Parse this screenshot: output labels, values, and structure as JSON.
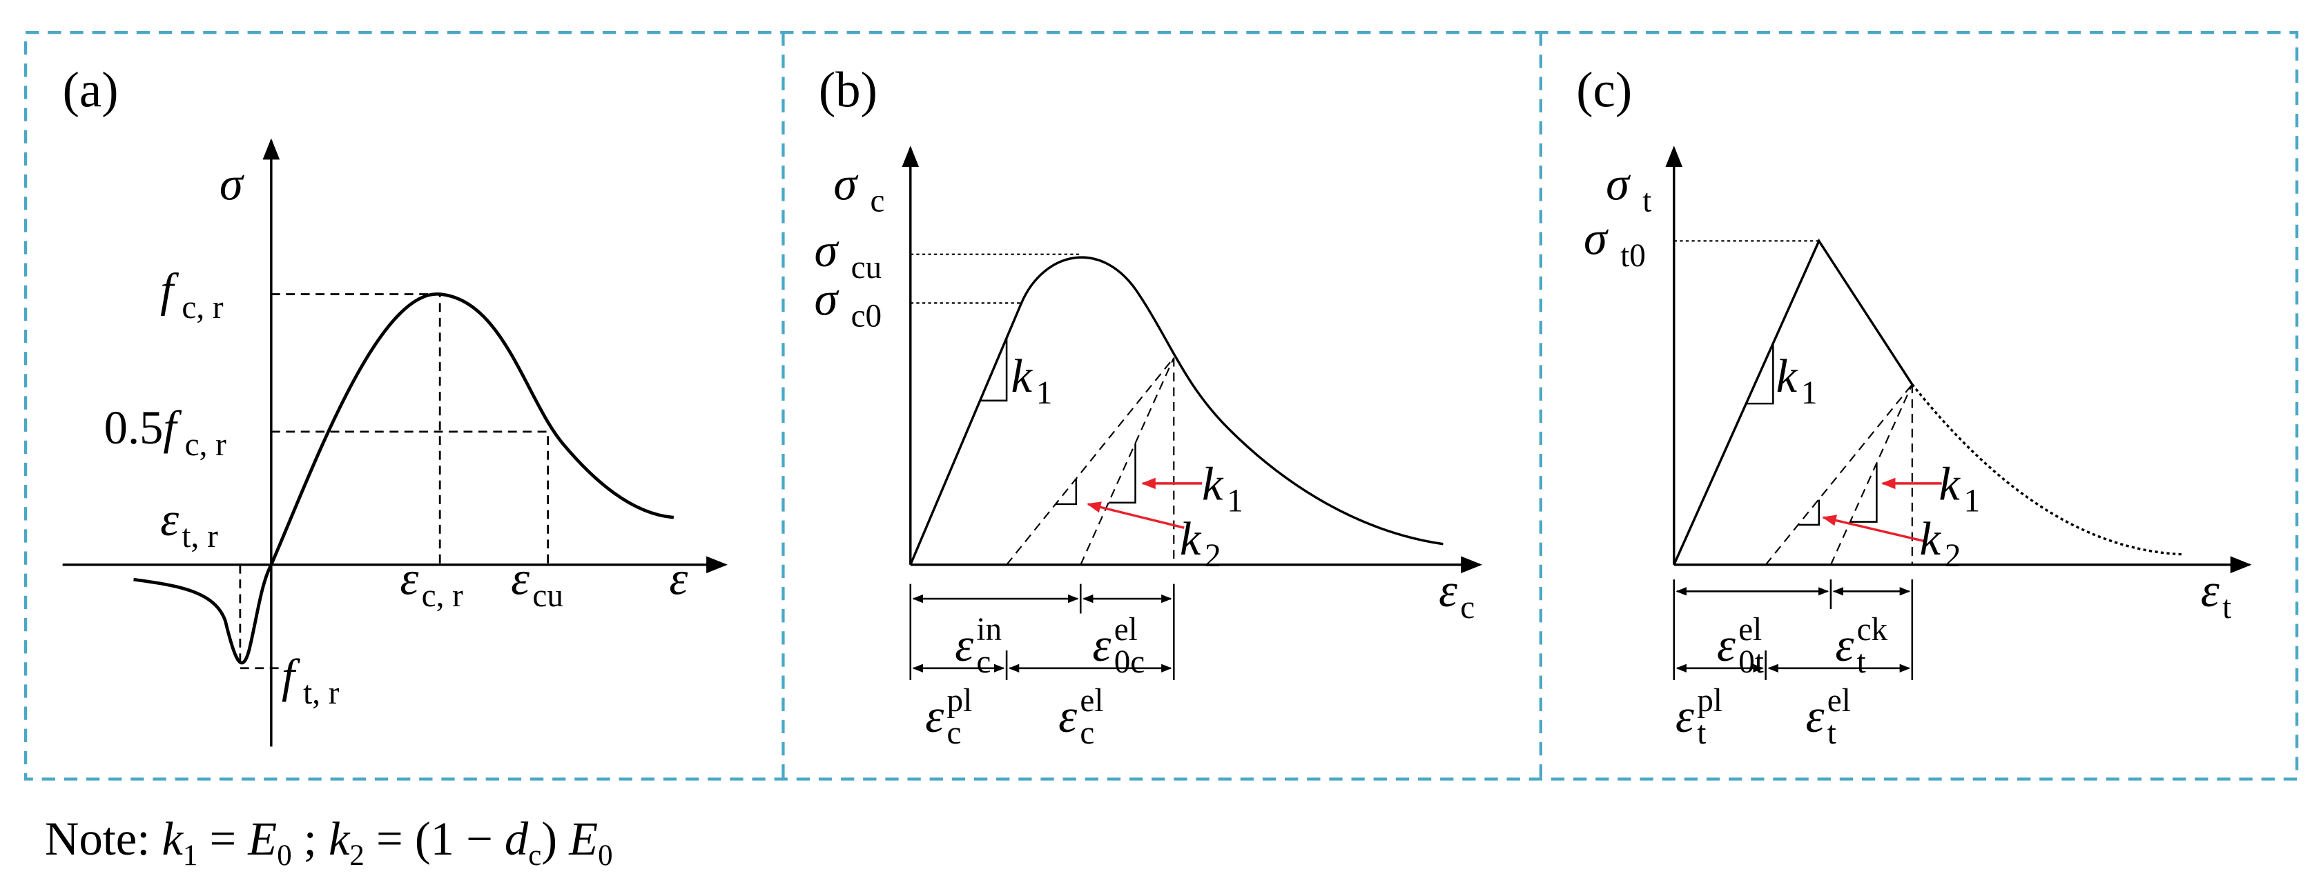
{
  "panels": [
    {
      "tag": "(a)",
      "labels": [
        {
          "symbol": "σ"
        },
        {
          "symbol": "f",
          "sub": "c, r"
        },
        {
          "prefix": "0.5",
          "symbol": "f",
          "sub": "c, r"
        },
        {
          "symbol": "ε",
          "sub": "t, r"
        },
        {
          "symbol": "ε",
          "sub": "c, r"
        },
        {
          "symbol": "ε",
          "sub": "cu"
        },
        {
          "symbol": "ε"
        },
        {
          "symbol": "f",
          "sub": "t, r"
        }
      ]
    },
    {
      "tag": "(b)",
      "labels": [
        {
          "symbol": "σ",
          "sub": "c"
        },
        {
          "symbol": "σ",
          "sub": "cu"
        },
        {
          "symbol": "σ",
          "sub": "c0"
        },
        {
          "symbol": "k",
          "sub": "1"
        },
        {
          "symbol": "k",
          "sub": "1"
        },
        {
          "symbol": "k",
          "sub": "2"
        },
        {
          "symbol": "ε",
          "sub": "c"
        },
        {
          "symbol": "ε",
          "sub": "c",
          "sup": "in"
        },
        {
          "symbol": "ε",
          "sub": "0c",
          "sup": "el"
        },
        {
          "symbol": "ε",
          "sub": "c",
          "sup": "pl"
        },
        {
          "symbol": "ε",
          "sub": "c",
          "sup": "el"
        }
      ]
    },
    {
      "tag": "(c)",
      "labels": [
        {
          "symbol": "σ",
          "sub": "t"
        },
        {
          "symbol": "σ",
          "sub": "t0"
        },
        {
          "symbol": "k",
          "sub": "1"
        },
        {
          "symbol": "k",
          "sub": "1"
        },
        {
          "symbol": "k",
          "sub": "2"
        },
        {
          "symbol": "ε",
          "sub": "t"
        },
        {
          "symbol": "ε",
          "sub": "0t",
          "sup": "el"
        },
        {
          "symbol": "ε",
          "sub": "t",
          "sup": "ck"
        },
        {
          "symbol": "ε",
          "sub": "t",
          "sup": "pl"
        },
        {
          "symbol": "ε",
          "sub": "t",
          "sup": "el"
        }
      ]
    }
  ],
  "note": [
    "Note: ",
    "k",
    "1",
    " = ",
    "E",
    "0",
    " ; ",
    "k",
    "2",
    " = (1 − ",
    "d",
    "c",
    ") ",
    "E",
    "0"
  ]
}
